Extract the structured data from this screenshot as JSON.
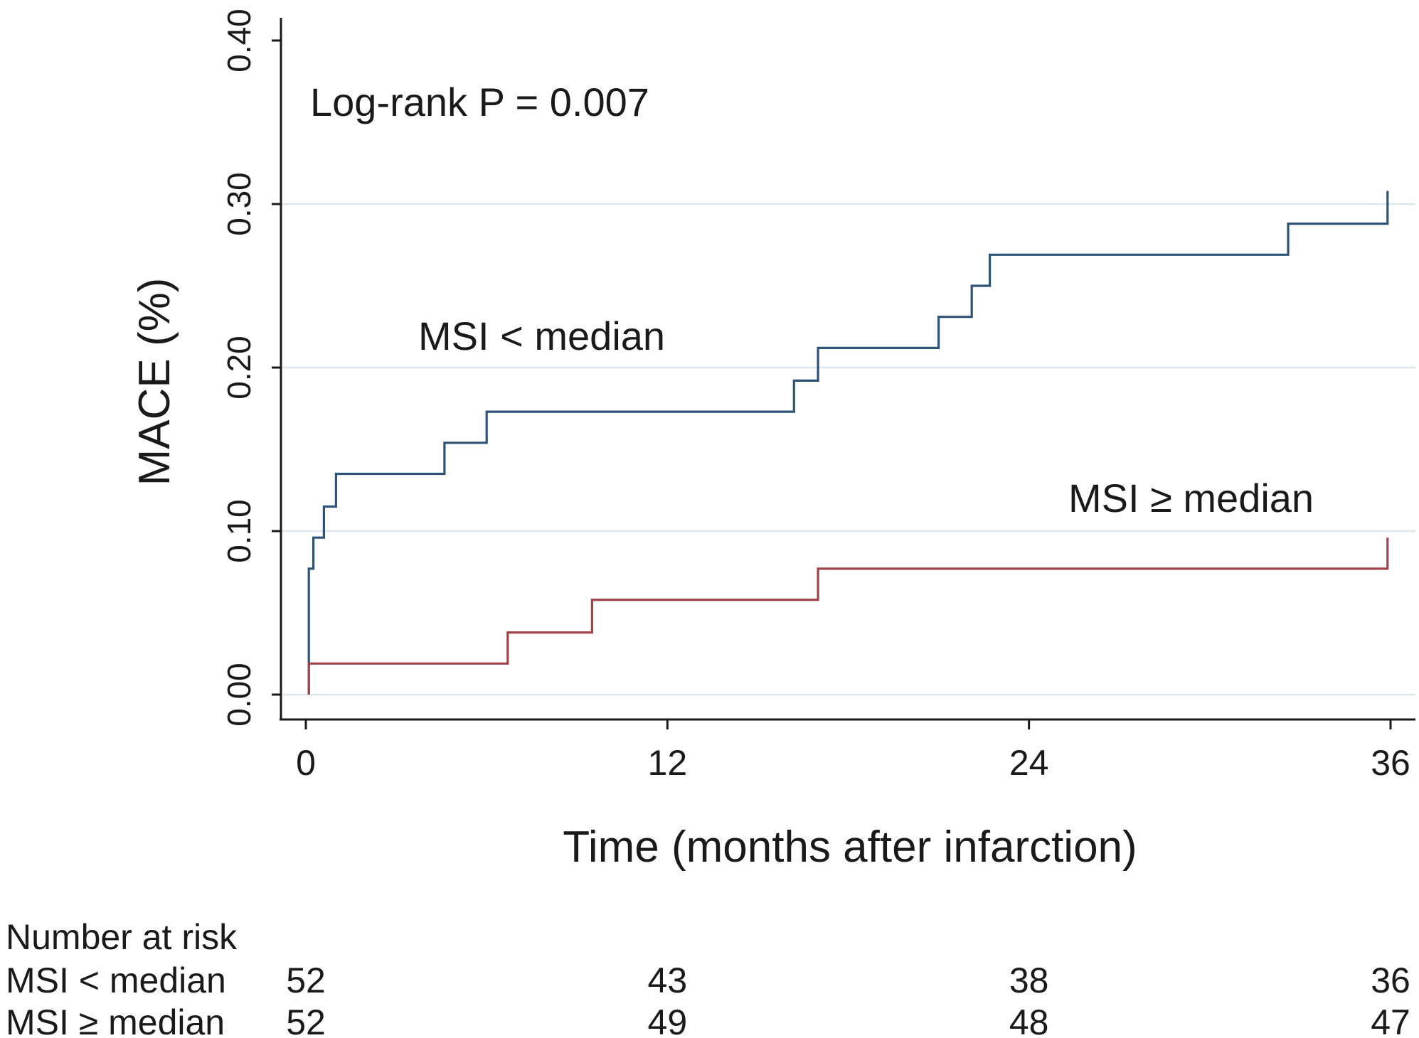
{
  "chart_data": {
    "type": "line",
    "step": true,
    "title": "",
    "xlabel": "Time (months after infarction)",
    "ylabel": "MACE (%)",
    "xlim": [
      0,
      36
    ],
    "ylim": [
      0,
      0.4
    ],
    "xticks": [
      "0",
      "12",
      "24",
      "36"
    ],
    "yticks": [
      "0.00",
      "0.10",
      "0.20",
      "0.30",
      "0.40"
    ],
    "grid": true,
    "annotation": "Log-rank P = 0.007",
    "series": [
      {
        "name": "MSI < median",
        "label": "MSI < median",
        "color": "#2f5377",
        "x": [
          0.1,
          0.1,
          0.25,
          0.25,
          0.6,
          0.6,
          1.0,
          1.0,
          4.6,
          4.6,
          6.0,
          6.0,
          16.2,
          16.2,
          17.0,
          17.0,
          21.0,
          21.0,
          22.1,
          22.1,
          22.7,
          22.7,
          32.6,
          32.6,
          35.9,
          35.9
        ],
        "y": [
          0.0,
          0.077,
          0.077,
          0.096,
          0.096,
          0.115,
          0.115,
          0.135,
          0.135,
          0.154,
          0.154,
          0.173,
          0.173,
          0.192,
          0.192,
          0.212,
          0.212,
          0.231,
          0.231,
          0.25,
          0.25,
          0.269,
          0.269,
          0.288,
          0.288,
          0.308
        ]
      },
      {
        "name": "MSI ≥ median",
        "label": "MSI ≥ median",
        "color": "#a0434b",
        "x": [
          0.1,
          0.1,
          6.7,
          6.7,
          9.5,
          9.5,
          17.0,
          17.0,
          35.9,
          35.9
        ],
        "y": [
          0.0,
          0.019,
          0.019,
          0.038,
          0.038,
          0.058,
          0.058,
          0.077,
          0.077,
          0.096
        ]
      }
    ],
    "risk_table": {
      "title": "Number at risk",
      "times": [
        0,
        12,
        24,
        36
      ],
      "rows": [
        {
          "label": "MSI < median",
          "values": [
            "52",
            "43",
            "38",
            "36"
          ]
        },
        {
          "label": "MSI ≥ median",
          "values": [
            "52",
            "49",
            "48",
            "47"
          ]
        }
      ]
    }
  }
}
